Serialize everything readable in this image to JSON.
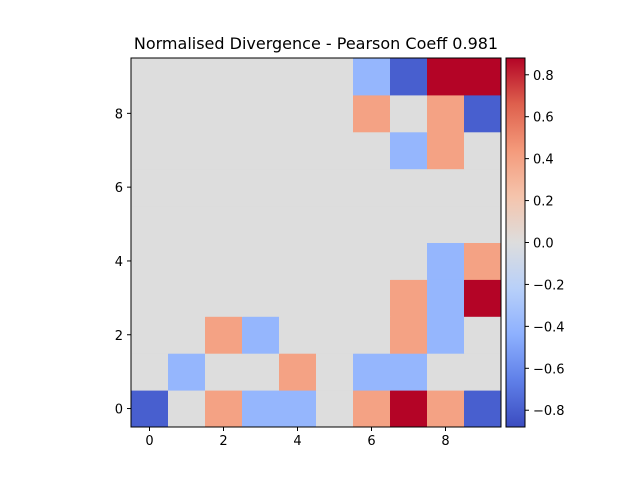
{
  "chart_data": {
    "type": "heatmap",
    "title": "Normalised Divergence - Pearson Coeff 0.981",
    "xlabel": "",
    "ylabel": "",
    "x_ticks": [
      0,
      2,
      4,
      6,
      8
    ],
    "y_ticks": [
      0,
      2,
      4,
      6,
      8
    ],
    "grid_size": [
      10,
      10
    ],
    "y_origin": "bottom",
    "colormap": "coolwarm",
    "vmin": -0.88,
    "vmax": 0.88,
    "colorbar_ticks": [
      0.8,
      0.6,
      0.4,
      0.2,
      0.0,
      -0.2,
      -0.4,
      -0.6,
      -0.8
    ],
    "colorbar_tick_labels": [
      "0.8",
      "0.6",
      "0.4",
      "0.2",
      "0.0",
      "−0.2",
      "−0.4",
      "−0.6",
      "−0.8"
    ],
    "values": [
      [
        -0.8,
        0.0,
        0.4,
        -0.4,
        -0.4,
        0.0,
        0.4,
        0.88,
        0.4,
        -0.8
      ],
      [
        0.0,
        -0.4,
        0.0,
        0.0,
        0.4,
        0.0,
        -0.4,
        -0.4,
        0.0,
        0.0
      ],
      [
        0.0,
        0.0,
        0.4,
        -0.4,
        0.0,
        0.0,
        0.0,
        0.4,
        -0.4,
        0.0
      ],
      [
        0.0,
        0.0,
        0.0,
        0.0,
        0.0,
        0.0,
        0.0,
        0.4,
        -0.4,
        0.88
      ],
      [
        0.0,
        0.0,
        0.0,
        0.0,
        0.0,
        0.0,
        0.0,
        0.0,
        -0.4,
        0.4
      ],
      [
        0.0,
        0.0,
        0.0,
        0.0,
        0.0,
        0.0,
        0.0,
        0.0,
        0.0,
        0.0
      ],
      [
        0.0,
        0.0,
        0.0,
        0.0,
        0.0,
        0.0,
        0.0,
        0.0,
        0.0,
        0.0
      ],
      [
        0.0,
        0.0,
        0.0,
        0.0,
        0.0,
        0.0,
        0.0,
        -0.4,
        0.4,
        0.0
      ],
      [
        0.0,
        0.0,
        0.0,
        0.0,
        0.0,
        0.0,
        0.4,
        0.0,
        0.4,
        -0.8
      ],
      [
        0.0,
        0.0,
        0.0,
        0.0,
        0.0,
        0.0,
        -0.4,
        -0.8,
        0.88,
        0.88
      ]
    ]
  }
}
